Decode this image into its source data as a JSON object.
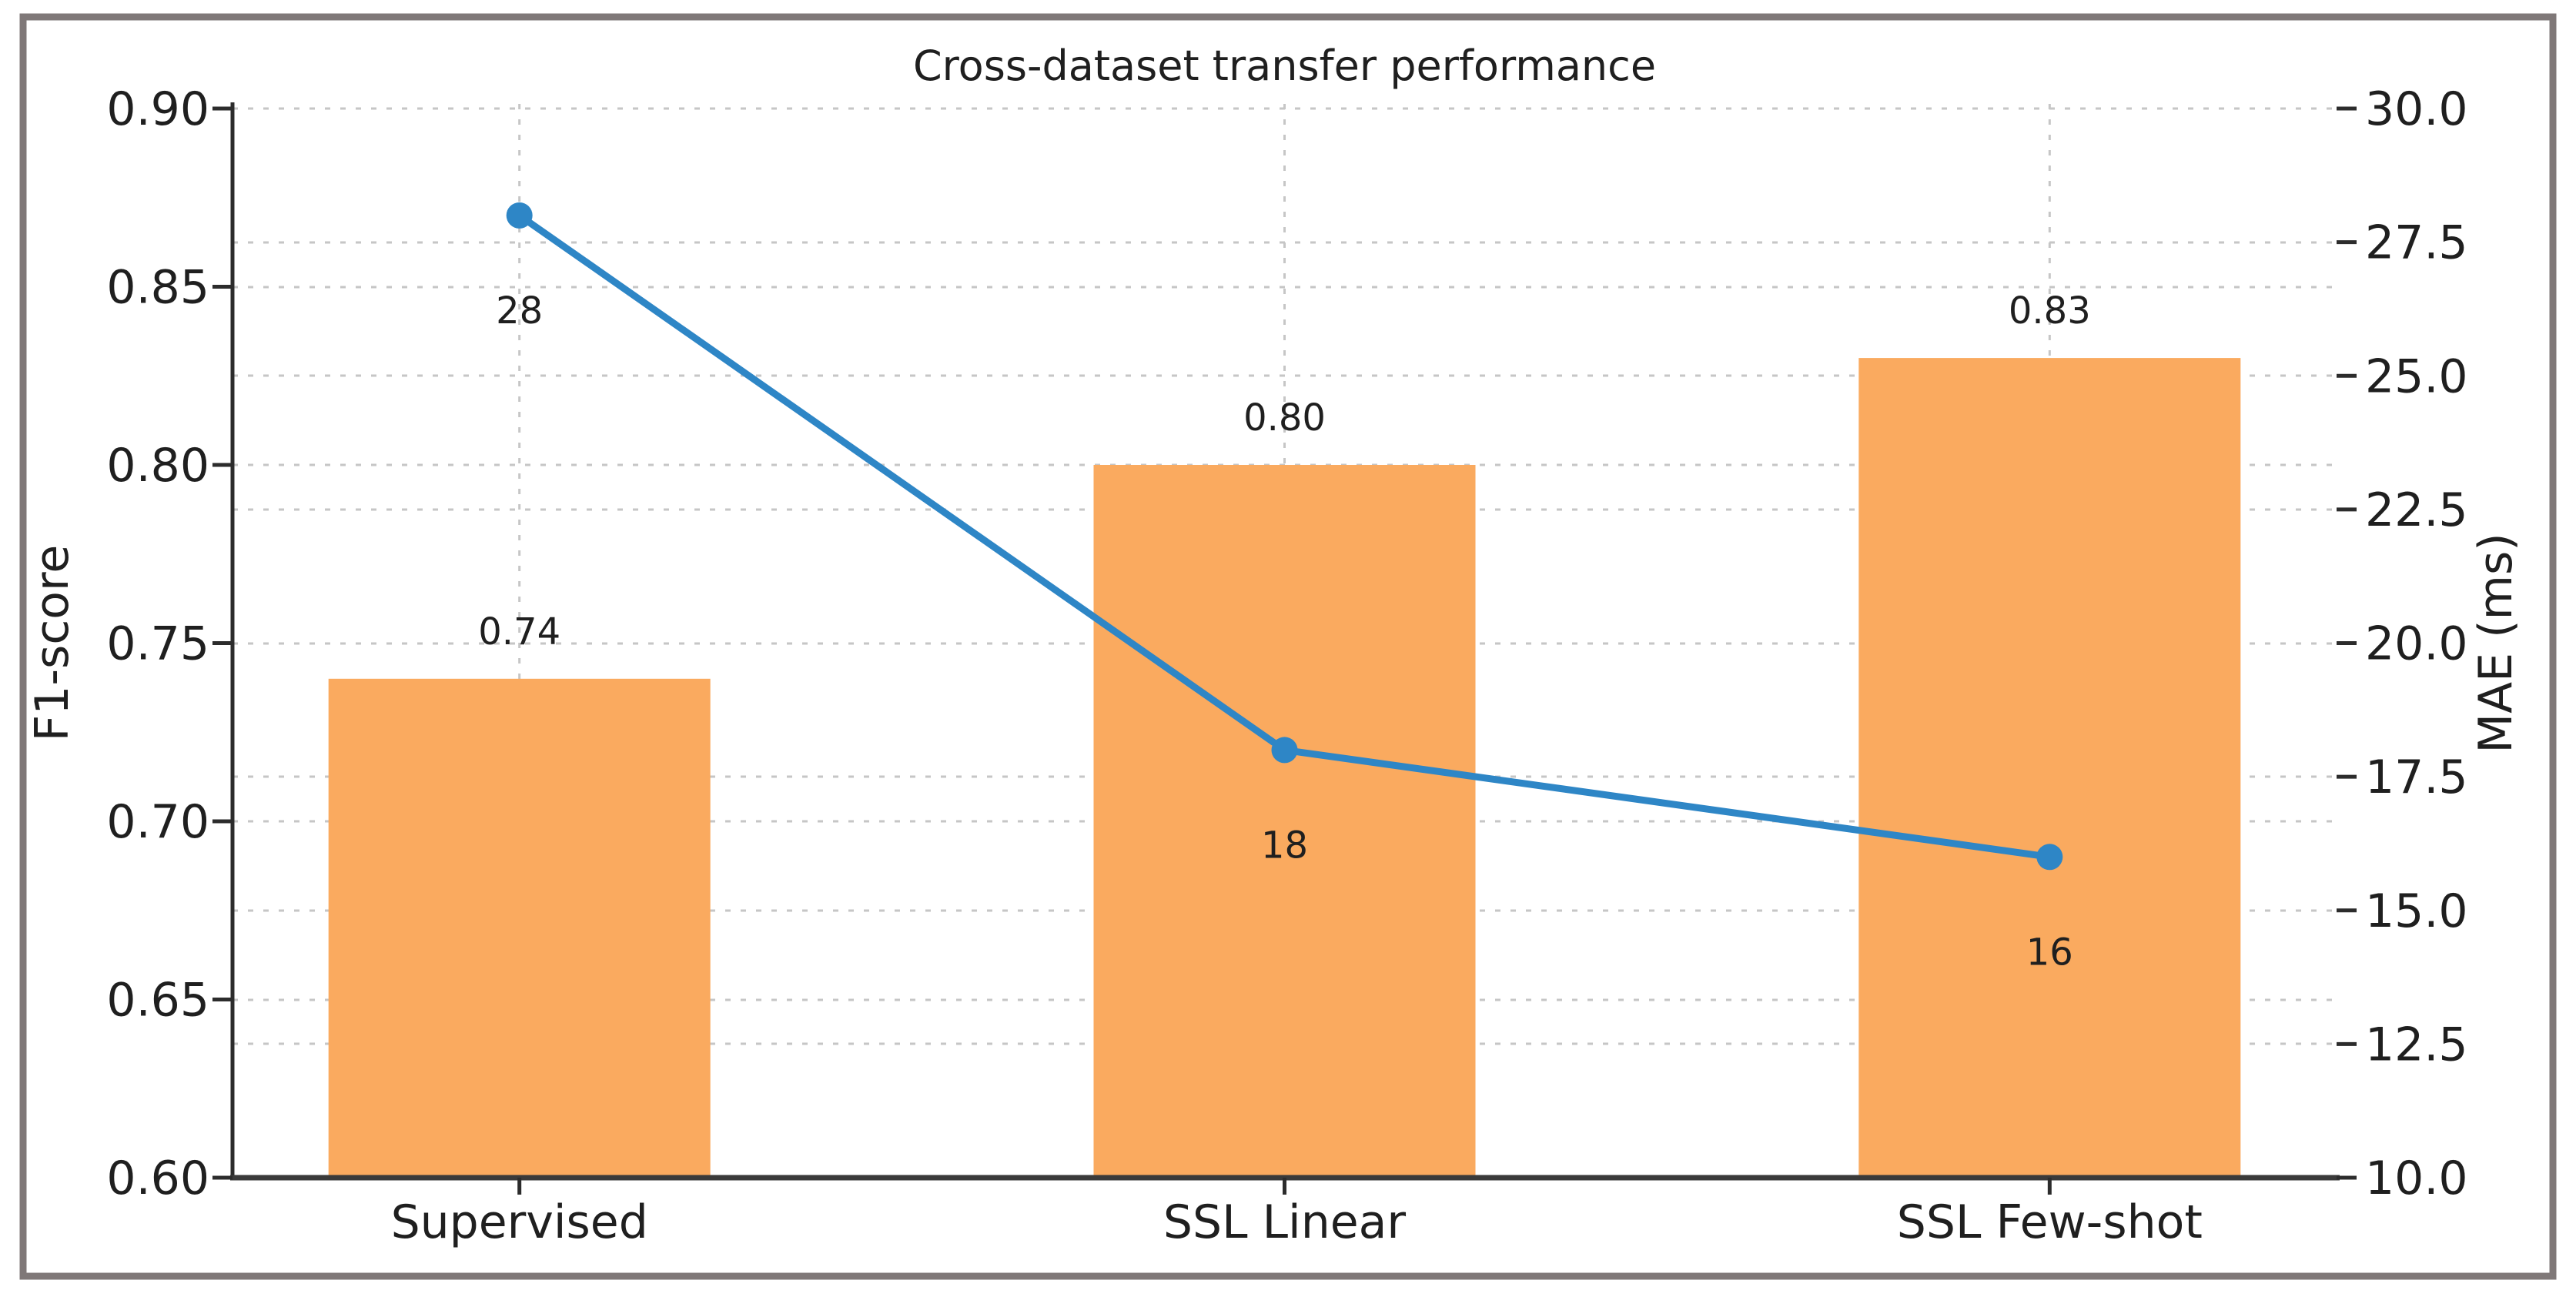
{
  "chart_data": {
    "type": "bar",
    "combo": "bar+line-dual-axis",
    "title": "Cross-dataset transfer performance",
    "categories": [
      "Supervised",
      "SSL Linear",
      "SSL Few-shot"
    ],
    "series": [
      {
        "name": "F1-score",
        "type": "bar",
        "axis": "left",
        "values": [
          0.74,
          0.8,
          0.83
        ],
        "data_labels": [
          "0.74",
          "0.80",
          "0.83"
        ],
        "color": "#FAAA5F"
      },
      {
        "name": "MAE (ms)",
        "type": "line",
        "axis": "right",
        "values": [
          28,
          18,
          16
        ],
        "data_labels": [
          "28",
          "18",
          "16"
        ],
        "color": "#2E86C6",
        "marker": "circle"
      }
    ],
    "left_axis": {
      "label": "F1-score",
      "min": 0.6,
      "max": 0.9,
      "tick_values": [
        0.9,
        0.85,
        0.8,
        0.75,
        0.7,
        0.65,
        0.6
      ],
      "tick_labels": [
        "0.90",
        "0.85",
        "0.80",
        "0.75",
        "0.70",
        "0.65",
        "0.60"
      ]
    },
    "right_axis": {
      "label": "MAE (ms)",
      "min": 10.0,
      "max": 30.0,
      "tick_values": [
        30.0,
        27.5,
        25.0,
        22.5,
        20.0,
        17.5,
        15.0,
        12.5,
        10.0
      ],
      "tick_labels": [
        "30.0",
        "27.5",
        "25.0",
        "22.5",
        "20.0",
        "17.5",
        "15.0",
        "12.5",
        "10.0"
      ]
    },
    "grid": {
      "show": true,
      "style": "dashed",
      "horizontal_from_both_axes": true,
      "vertical_at_categories": true
    },
    "legend_position": "none"
  },
  "colors": {
    "bar": "#FAAA5F",
    "line": "#2E86C6",
    "grid": "#c6c6c6",
    "spine": "#2c2c2c",
    "baseline": "#3a3a3a",
    "text": "#1f1f1f",
    "frame": "#7f7878",
    "background": "#ffffff"
  }
}
